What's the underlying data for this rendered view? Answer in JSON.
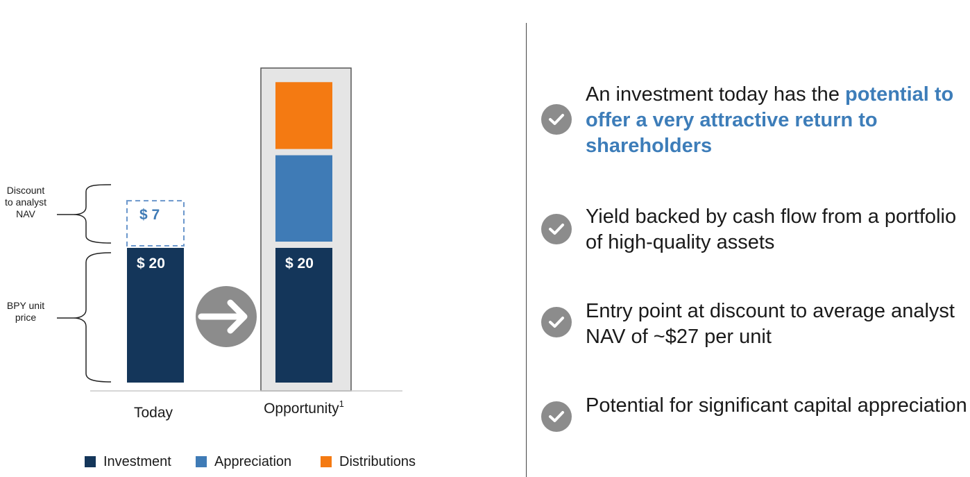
{
  "chart_data": {
    "type": "bar",
    "stacked": true,
    "categories": [
      "Today",
      "Opportunity"
    ],
    "category_footnote": [
      "",
      "1"
    ],
    "series": [
      {
        "name": "Investment",
        "color": "#14365a",
        "values": [
          20,
          20
        ],
        "labels": [
          "$ 20",
          "$ 20"
        ]
      },
      {
        "name": "Discount to analyst NAV",
        "style": "dashed-outline",
        "color": "#6b97cc",
        "values": [
          7,
          null
        ],
        "labels": [
          "$ 7",
          ""
        ]
      },
      {
        "name": "Appreciation",
        "color": "#3f7bb6",
        "values": [
          null,
          12
        ],
        "labels": [
          "",
          ""
        ]
      },
      {
        "name": "Distributions",
        "color": "#f47a12",
        "values": [
          null,
          9
        ],
        "labels": [
          "",
          ""
        ]
      }
    ],
    "legend": [
      "Investment",
      "Appreciation",
      "Distributions"
    ],
    "legend_position": "bottom",
    "brace_labels": [
      {
        "text": [
          "Discount",
          "to analyst",
          "NAV"
        ]
      },
      {
        "text": [
          "BPY unit",
          "price"
        ]
      }
    ],
    "arrow": "right-arrow-icon",
    "grid": false,
    "title": "",
    "xlabel": "",
    "ylabel": ""
  },
  "bullets": [
    {
      "icon": "check-icon",
      "plain": "An investment today has the ",
      "highlight": "potential to offer a very attractive return to shareholders"
    },
    {
      "icon": "check-icon",
      "plain": "Yield backed by cash flow from a portfolio of high-quality assets",
      "highlight": ""
    },
    {
      "icon": "check-icon",
      "plain": "Entry point at discount to average analyst NAV of ~$27 per unit",
      "highlight": ""
    },
    {
      "icon": "check-icon",
      "plain": "Potential for significant capital appreciation",
      "highlight": ""
    }
  ],
  "colors": {
    "highlight": "#3d7db9",
    "check": "#8c8c8c",
    "arrow": "#8c8c8c",
    "frame": "#e5e5e5"
  }
}
